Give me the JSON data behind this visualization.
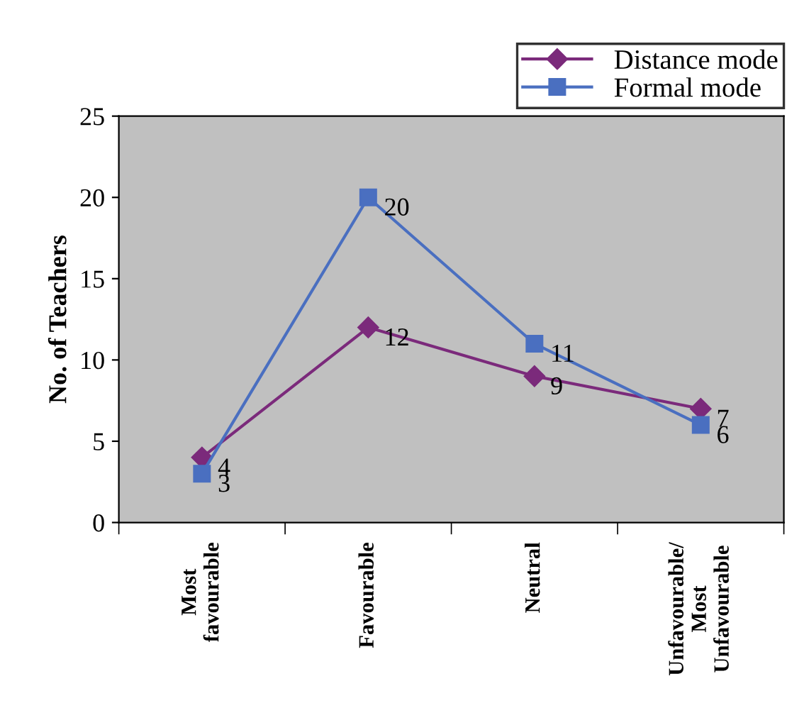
{
  "chart_data": {
    "type": "line",
    "ylabel": "No. of Teachers",
    "categories": [
      "Most\nfavourable",
      "Favourable",
      "Neutral",
      "Unfavourable/\nMost\nUnfavourable"
    ],
    "series": [
      {
        "name": "Distance mode",
        "color": "#7b2a7b",
        "marker": "diamond",
        "values": [
          4,
          12,
          9,
          7
        ]
      },
      {
        "name": "Formal mode",
        "color": "#4a6fc0",
        "marker": "square",
        "values": [
          3,
          20,
          11,
          6
        ]
      }
    ],
    "ylim": [
      0,
      25
    ],
    "yticks": [
      0,
      5,
      10,
      15,
      20,
      25
    ],
    "data_labels": true,
    "legend": "top right",
    "grid": false,
    "line_style": "solid"
  }
}
